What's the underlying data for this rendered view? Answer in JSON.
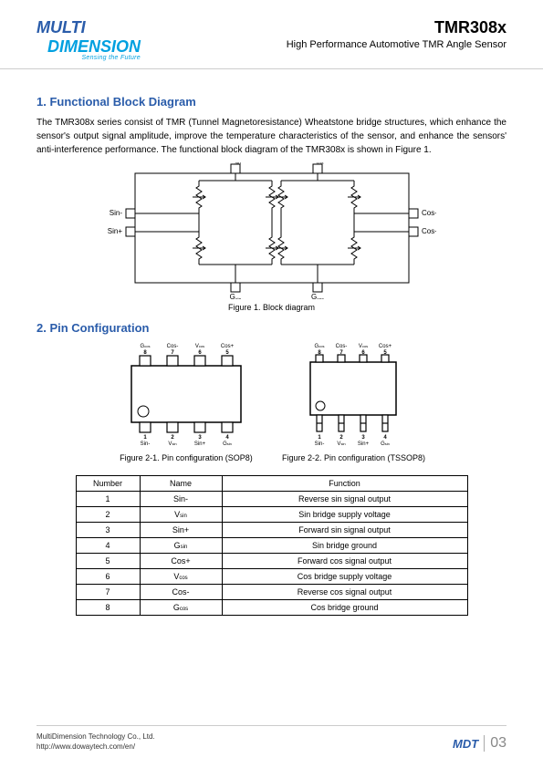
{
  "header": {
    "logo_multi": "MULTI",
    "logo_dim": "DIMENSION",
    "logo_tagline": "Sensing the Future",
    "part": "TMR308x",
    "subtitle": "High Performance Automotive TMR Angle Sensor"
  },
  "section1": {
    "title": "1. Functional Block Diagram",
    "body": "The TMR308x series consist of TMR (Tunnel Magnetoresistance) Wheatstone bridge structures, which enhance the sensor's output signal amplitude, improve the temperature characteristics of the sensor, and enhance the sensors' anti-interference performance. The functional block diagram of the TMR308x is shown in Figure 1.",
    "caption": "Figure 1. Block diagram",
    "labels": {
      "vsin": "Vsin",
      "vcos": "Vcos",
      "gsin": "Gsin",
      "gcos": "Gcos",
      "sinm": "Sin-",
      "sinp": "Sin+",
      "cosm": "Cos-",
      "cosp": "Cos+"
    }
  },
  "section2": {
    "title": "2. Pin Configuration",
    "caption1": "Figure 2-1. Pin configuration (SOP8)",
    "caption2": "Figure 2-2. Pin configuration (TSSOP8)",
    "sop8_top": [
      [
        "Gcos",
        "8"
      ],
      [
        "Cos-",
        "7"
      ],
      [
        "Vcos",
        "6"
      ],
      [
        "Cos+",
        "5"
      ]
    ],
    "sop8_bot": [
      [
        "1",
        "Sin-"
      ],
      [
        "2",
        "Vsin"
      ],
      [
        "3",
        "Sin+"
      ],
      [
        "4",
        "Gsin"
      ]
    ],
    "tssop8_top": [
      [
        "Gcos",
        "8"
      ],
      [
        "Cos-",
        "7"
      ],
      [
        "Vcos",
        "6"
      ],
      [
        "Cos+",
        "5"
      ]
    ],
    "tssop8_bot": [
      [
        "1",
        "Sin-"
      ],
      [
        "2",
        "Vsin"
      ],
      [
        "3",
        "Sin+"
      ],
      [
        "4",
        "Gsin"
      ]
    ],
    "table": {
      "headers": [
        "Number",
        "Name",
        "Function"
      ],
      "rows": [
        [
          "1",
          "Sin-",
          "Reverse sin signal output"
        ],
        [
          "2",
          "Vsin",
          "Sin bridge supply voltage"
        ],
        [
          "3",
          "Sin+",
          "Forward sin signal output"
        ],
        [
          "4",
          "Gsin",
          "Sin bridge ground"
        ],
        [
          "5",
          "Cos+",
          "Forward cos signal output"
        ],
        [
          "6",
          "Vcos",
          "Cos bridge supply voltage"
        ],
        [
          "7",
          "Cos-",
          "Reverse cos signal output"
        ],
        [
          "8",
          "Gcos",
          "Cos bridge ground"
        ]
      ]
    }
  },
  "footer": {
    "company": "MultiDimension Technology Co., Ltd.",
    "url": "http://www.dowaytech.com/en/",
    "mdt": "MDT",
    "page": "03"
  },
  "colors": {
    "brand_blue": "#2a5caa",
    "brand_cyan": "#00a0e0"
  }
}
